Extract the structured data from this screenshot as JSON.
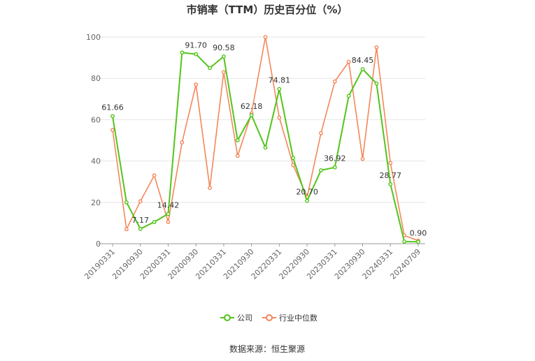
{
  "chart_data": {
    "type": "line",
    "title": "市销率（TTM）历史百分位（%）",
    "source": "数据来源：恒生聚源",
    "x_tick_labels": [
      "20190331",
      "20190930",
      "20200331",
      "20200930",
      "20210331",
      "20210930",
      "20220331",
      "20220930",
      "20230331",
      "20230930",
      "20240331",
      "20240709"
    ],
    "y_ticks": [
      "0",
      "20",
      "40",
      "60",
      "80",
      "100"
    ],
    "ylim": [
      0,
      100
    ],
    "grid": true,
    "legend_position": "bottom",
    "series": [
      {
        "name": "公司",
        "color": "#52c41a",
        "values": [
          61.66,
          20.0,
          7.17,
          10.5,
          14.42,
          92.5,
          91.7,
          85.0,
          90.58,
          50.0,
          62.18,
          46.5,
          74.81,
          41.5,
          20.7,
          35.5,
          36.92,
          71.5,
          84.45,
          77.5,
          28.77,
          1.0,
          0.9
        ]
      },
      {
        "name": "行业中位数",
        "color": "#f4875a",
        "values": [
          55.0,
          7.0,
          20.5,
          33.0,
          10.5,
          49.0,
          77.0,
          27.0,
          83.0,
          42.5,
          63.0,
          100.0,
          61.0,
          38.0,
          22.5,
          53.5,
          78.5,
          88.0,
          41.0,
          95.0,
          39.0,
          4.0,
          1.5
        ]
      }
    ],
    "data_labels": [
      {
        "index": 0,
        "text": "61.66"
      },
      {
        "index": 2,
        "text": "7.17"
      },
      {
        "index": 4,
        "text": "14.42"
      },
      {
        "index": 6,
        "text": "91.70"
      },
      {
        "index": 8,
        "text": "90.58"
      },
      {
        "index": 10,
        "text": "62.18"
      },
      {
        "index": 12,
        "text": "74.81"
      },
      {
        "index": 14,
        "text": "20.70"
      },
      {
        "index": 16,
        "text": "36.92"
      },
      {
        "index": 18,
        "text": "84.45"
      },
      {
        "index": 20,
        "text": "28.77"
      },
      {
        "index": 22,
        "text": "0.90"
      }
    ]
  }
}
